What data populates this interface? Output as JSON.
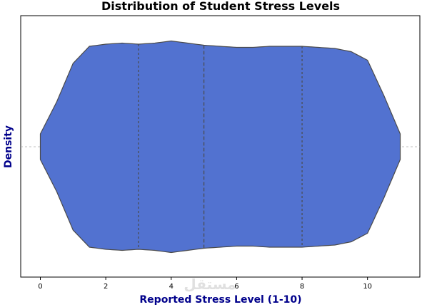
{
  "chart_data": {
    "type": "violin",
    "title": "Distribution of Student Stress Levels",
    "xlabel": "Reported Stress Level (1-10)",
    "ylabel": "Density",
    "xlim": [
      -0.6,
      11.6
    ],
    "xticks": [
      0,
      2,
      4,
      6,
      8,
      10
    ],
    "data_range": [
      0,
      11
    ],
    "quartiles": {
      "q1": 3,
      "median": 5,
      "q3": 8
    },
    "fill_color": "#5272d0",
    "edge_color": "#4a4a4a",
    "density_profile": {
      "x": [
        0,
        0.5,
        1,
        1.5,
        2,
        2.5,
        3,
        3.5,
        4,
        4.5,
        5,
        5.5,
        6,
        6.5,
        7,
        7.5,
        8,
        8.5,
        9,
        9.5,
        10,
        10.5,
        11
      ],
      "width": [
        0.12,
        0.42,
        0.78,
        0.94,
        0.96,
        0.97,
        0.96,
        0.97,
        0.99,
        0.97,
        0.95,
        0.94,
        0.93,
        0.93,
        0.94,
        0.94,
        0.94,
        0.93,
        0.92,
        0.89,
        0.81,
        0.48,
        0.12
      ]
    },
    "grid": false,
    "legend": "none",
    "watermark": "مستقل"
  }
}
